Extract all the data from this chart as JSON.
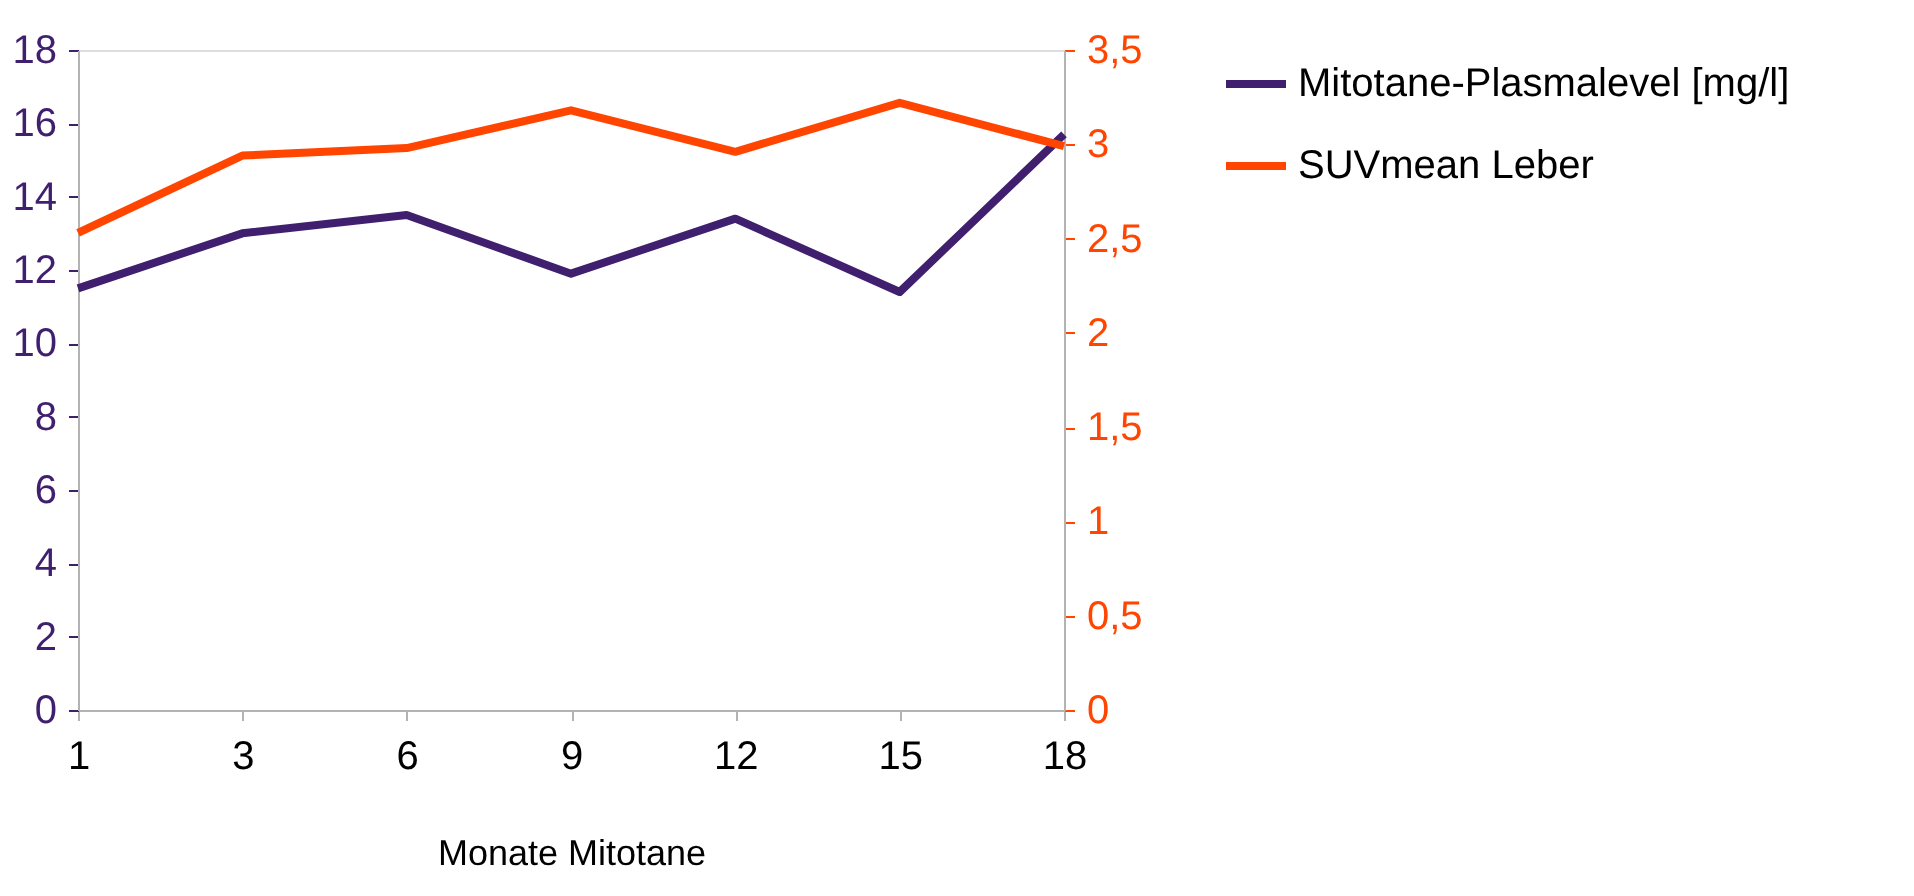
{
  "chart_data": {
    "type": "line",
    "xlabel": "Monate Mitotane",
    "categories": [
      "1",
      "3",
      "6",
      "9",
      "12",
      "15",
      "18"
    ],
    "series": [
      {
        "name": "Mitotane-Plasmalevel [mg/l]",
        "color": "#3f1f6e",
        "values": [
          11.5,
          13.0,
          13.5,
          11.9,
          13.4,
          11.4,
          15.7
        ]
      },
      {
        "name": "SUVmean Leber",
        "color": "#ff4500",
        "axis": "y2",
        "values": [
          2.53,
          2.94,
          2.98,
          3.18,
          2.96,
          3.22,
          2.99
        ]
      }
    ],
    "ylim": [
      0,
      18
    ],
    "yticks": [
      0,
      2,
      4,
      6,
      8,
      10,
      12,
      14,
      16,
      18
    ],
    "y2lim": [
      0,
      3.5
    ],
    "y2ticks": [
      0,
      {
        "value": 0.5,
        "label": "0,5"
      },
      1,
      {
        "value": 1.5,
        "label": "1,5"
      },
      2,
      {
        "value": 2.5,
        "label": "2,5"
      },
      3,
      {
        "value": 3.5,
        "label": "3,5"
      }
    ],
    "grid": false,
    "legend": "right",
    "marker": "none",
    "line_style": "solid"
  }
}
